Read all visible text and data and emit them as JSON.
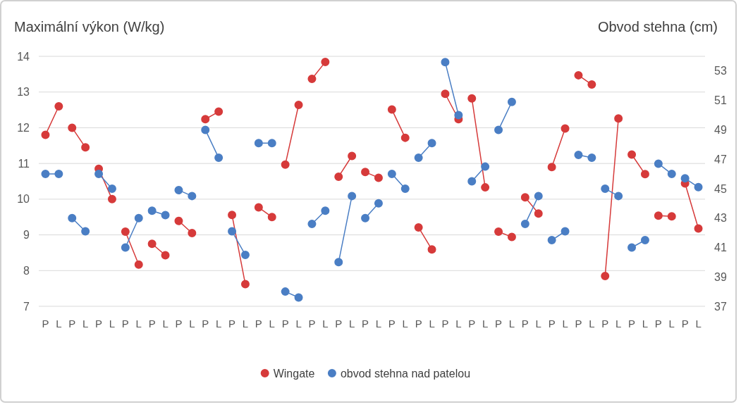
{
  "chart_data": {
    "type": "line",
    "ylabel": "Maximální výkon (W/kg)",
    "y2label": "Obvod stehna (cm)",
    "categories": [
      "P",
      "L",
      "P",
      "L",
      "P",
      "L",
      "P",
      "L",
      "P",
      "L",
      "P",
      "L",
      "P",
      "L",
      "P",
      "L",
      "P",
      "L",
      "P",
      "L",
      "P",
      "L",
      "P",
      "L",
      "P",
      "L",
      "P",
      "L",
      "P",
      "L",
      "P",
      "L",
      "P",
      "L",
      "P",
      "L",
      "P",
      "L",
      "P",
      "L",
      "P",
      "L",
      "P",
      "L",
      "P",
      "L",
      "P",
      "L",
      "P",
      "L"
    ],
    "series": [
      {
        "name": "Wingate",
        "color": "#d63a3a",
        "values": [
          11.8,
          12.6,
          12.0,
          11.45,
          10.85,
          10.0,
          9.09,
          8.17,
          8.75,
          8.43,
          9.39,
          9.05,
          12.24,
          12.45,
          9.56,
          7.62,
          9.77,
          9.5,
          10.97,
          12.64,
          13.37,
          13.84,
          10.63,
          11.21,
          10.76,
          10.6,
          12.51,
          11.72,
          9.21,
          8.59,
          12.95,
          12.24,
          12.82,
          10.33,
          9.09,
          8.94,
          10.05,
          9.6,
          10.9,
          11.98,
          13.47,
          13.21,
          7.85,
          12.26,
          11.25,
          10.7,
          9.54,
          9.52,
          10.44,
          9.18
        ]
      },
      {
        "name": "obvod stehna nad patelou",
        "color": "#4a7ec4",
        "axis": "y2",
        "values": [
          46.0,
          46.0,
          43.0,
          42.1,
          46.0,
          45.0,
          41.0,
          43.0,
          43.5,
          43.2,
          44.9,
          44.5,
          49.0,
          47.1,
          42.1,
          40.5,
          48.1,
          48.1,
          38.0,
          37.6,
          42.6,
          43.5,
          40.0,
          44.5,
          43.0,
          44.0,
          46.0,
          45.0,
          47.1,
          48.1,
          53.6,
          50.0,
          45.5,
          46.5,
          49.0,
          50.9,
          42.6,
          44.5,
          41.5,
          42.1,
          47.3,
          47.1,
          45.0,
          44.5,
          41.0,
          41.5,
          46.7,
          46.0,
          45.7,
          45.1
        ]
      }
    ],
    "ylim": [
      7,
      14
    ],
    "yticks": [
      7,
      8,
      9,
      10,
      11,
      12,
      13,
      14
    ],
    "y2lim": [
      37,
      54
    ],
    "y2ticks": [
      37,
      39,
      41,
      43,
      45,
      47,
      49,
      51,
      53
    ],
    "grid": "y",
    "legend": "bottom",
    "marker": "circle",
    "line_style": "solid"
  }
}
